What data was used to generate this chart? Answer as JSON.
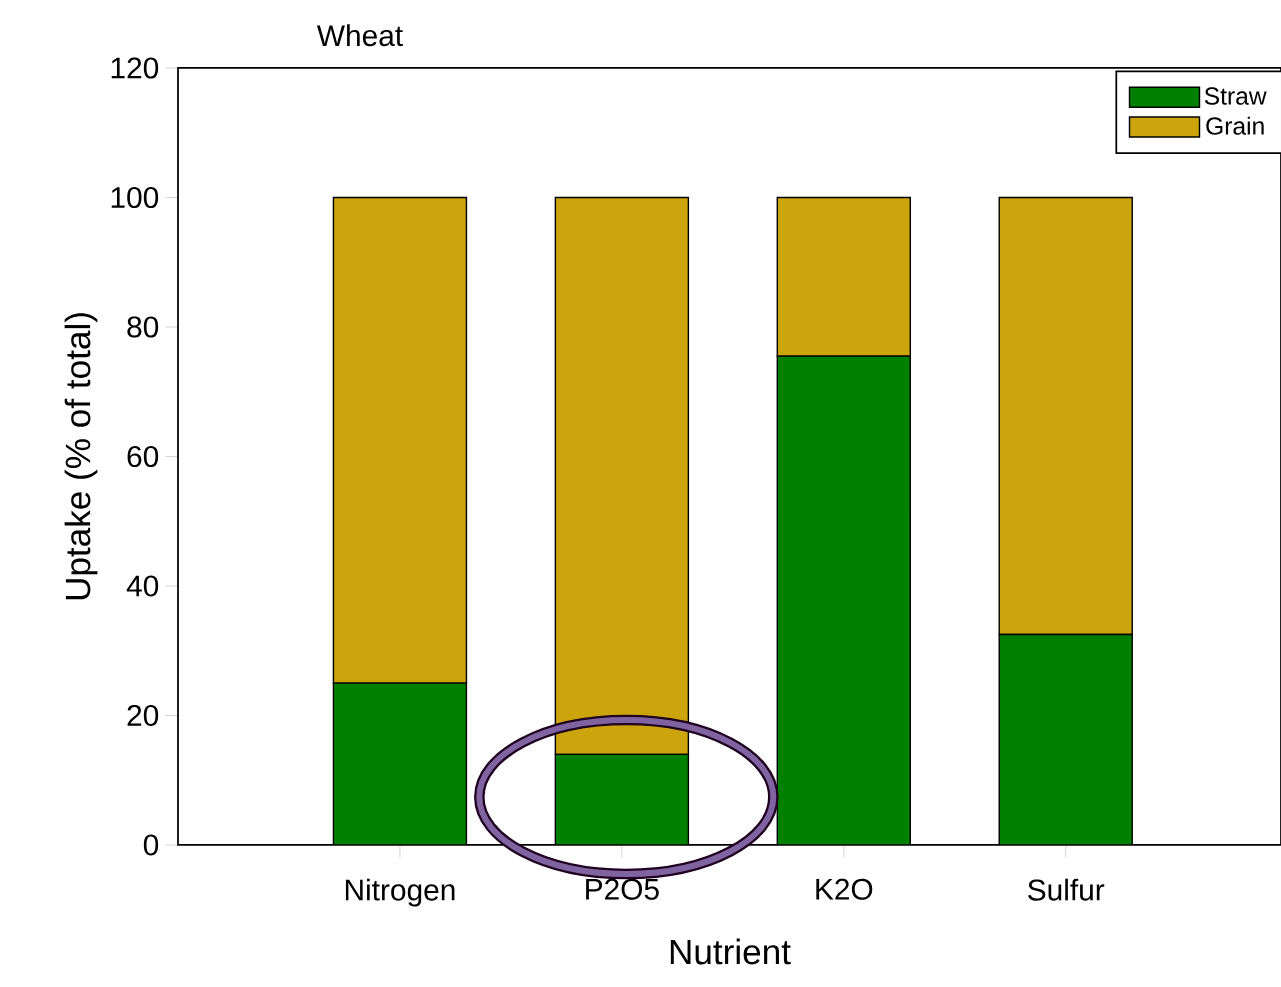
{
  "chart_data": {
    "type": "bar",
    "title": "Wheat",
    "xlabel": "Nutrient",
    "ylabel": "Uptake (% of total)",
    "categories": [
      "Nitrogen",
      "P2O5",
      "K2O",
      "Sulfur"
    ],
    "series": [
      {
        "name": "Straw",
        "color": "#008000",
        "values": [
          25,
          14,
          75.5,
          32.5
        ]
      },
      {
        "name": "Grain",
        "color": "#cca50c",
        "values": [
          75,
          86,
          24.5,
          67.5
        ]
      }
    ],
    "stacked": true,
    "ylim": [
      0,
      120
    ],
    "yticks": [
      0,
      20,
      40,
      60,
      80,
      100,
      120
    ],
    "legend": "top right"
  }
}
